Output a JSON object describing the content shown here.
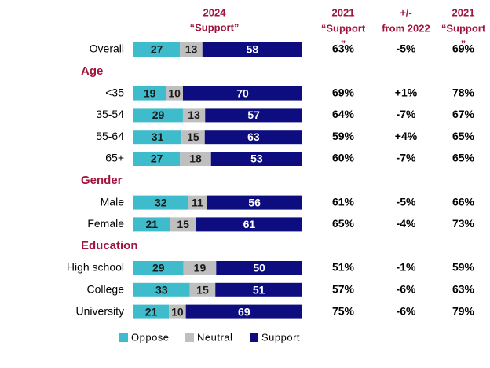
{
  "chart_data": {
    "type": "bar",
    "stacked": "percent",
    "orientation": "horizontal",
    "header": [
      "2024",
      "“Support”"
    ],
    "categories": [
      "Overall",
      "Age",
      "<35",
      "35-54",
      "55-64",
      "65+",
      "Gender",
      "Male",
      "Female",
      "Education",
      "High school",
      "College",
      "University"
    ],
    "series": [
      {
        "name": "Oppose",
        "color": "#3fbccc",
        "text_color": "#1a1a1a",
        "values": [
          27,
          null,
          19,
          29,
          31,
          27,
          null,
          32,
          21,
          null,
          29,
          33,
          21
        ]
      },
      {
        "name": "Neutral",
        "color": "#bfbfbf",
        "text_color": "#1a1a1a",
        "values": [
          13,
          null,
          10,
          13,
          15,
          18,
          null,
          11,
          15,
          null,
          19,
          15,
          10
        ]
      },
      {
        "name": "Support",
        "color": "#0d0d80",
        "text_color": "#ffffff",
        "values": [
          58,
          null,
          70,
          57,
          63,
          53,
          null,
          56,
          61,
          null,
          50,
          51,
          69
        ]
      }
    ],
    "columns": [
      {
        "header": [
          "2021",
          "“Support",
          "”"
        ],
        "values": [
          "63%",
          null,
          "69%",
          "64%",
          "59%",
          "60%",
          null,
          "61%",
          "65%",
          null,
          "51%",
          "57%",
          "75%"
        ]
      },
      {
        "header": [
          "+/-",
          "from 2022"
        ],
        "values": [
          "-5%",
          null,
          "+1%",
          "-7%",
          "+4%",
          "-7%",
          null,
          "-5%",
          "-4%",
          null,
          "-1%",
          "-6%",
          "-6%"
        ]
      },
      {
        "header": [
          "2021",
          "“Support",
          "”"
        ],
        "values": [
          "69%",
          null,
          "78%",
          "67%",
          "65%",
          "65%",
          null,
          "66%",
          "73%",
          null,
          "59%",
          "63%",
          "79%"
        ]
      }
    ],
    "legend": "bottom"
  }
}
